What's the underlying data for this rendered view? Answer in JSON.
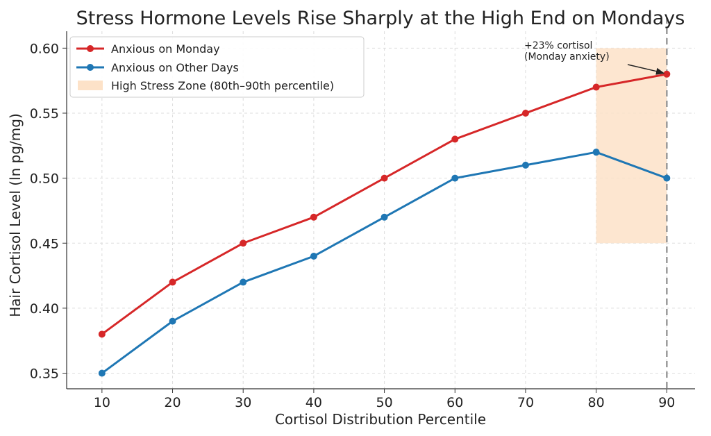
{
  "chart_data": {
    "type": "line",
    "title": "Stress Hormone Levels Rise Sharply at the High End on Mondays",
    "xlabel": "Cortisol Distribution Percentile",
    "ylabel": "Hair Cortisol Level (ln pg/mg)",
    "x": [
      10,
      20,
      30,
      40,
      50,
      60,
      70,
      80,
      90
    ],
    "xticks": [
      "10",
      "20",
      "30",
      "40",
      "50",
      "60",
      "70",
      "80",
      "90"
    ],
    "yticks": [
      "0.35",
      "0.40",
      "0.45",
      "0.50",
      "0.55",
      "0.60"
    ],
    "xlim": [
      5,
      94
    ],
    "ylim": [
      0.338,
      0.613
    ],
    "grid": true,
    "legend_position": "top-left",
    "series": [
      {
        "name": "Anxious on Monday",
        "color": "#d62728",
        "values": [
          0.38,
          0.42,
          0.45,
          0.47,
          0.5,
          0.53,
          0.55,
          0.57,
          0.58
        ]
      },
      {
        "name": "Anxious on Other Days",
        "color": "#1f77b4",
        "values": [
          0.35,
          0.39,
          0.42,
          0.44,
          0.47,
          0.5,
          0.51,
          0.52,
          0.5
        ]
      }
    ],
    "shaded_region": {
      "label": "High Stress Zone (80th–90th percentile)",
      "x_range": [
        80,
        90
      ],
      "y_range": [
        0.45,
        0.6
      ],
      "color": "#fde2c8"
    },
    "vertical_line": {
      "x": 90,
      "color": "#999999"
    },
    "annotation": {
      "lines": [
        "+23% cortisol",
        "(Monday anxiety)"
      ],
      "target_x": 90,
      "target_y": 0.58
    }
  }
}
